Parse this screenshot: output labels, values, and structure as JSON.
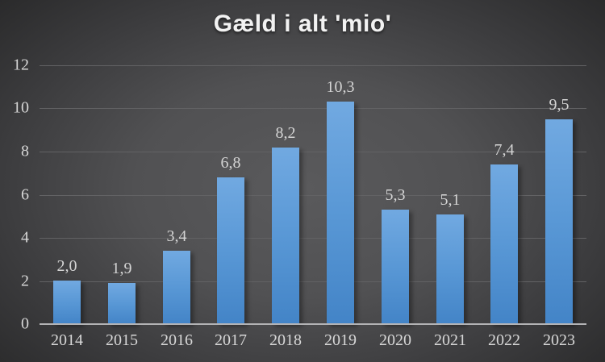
{
  "chart_data": {
    "type": "bar",
    "title": "Gæld i alt 'mio'",
    "categories": [
      "2014",
      "2015",
      "2016",
      "2017",
      "2018",
      "2019",
      "2020",
      "2021",
      "2022",
      "2023"
    ],
    "values": [
      2.0,
      1.9,
      3.4,
      6.8,
      8.2,
      10.3,
      5.3,
      5.1,
      7.4,
      9.5
    ],
    "value_labels": [
      "2,0",
      "1,9",
      "3,4",
      "6,8",
      "8,2",
      "10,3",
      "5,3",
      "5,1",
      "7,4",
      "9,5"
    ],
    "xlabel": "",
    "ylabel": "",
    "ylim": [
      0,
      12
    ],
    "yticks": [
      0,
      2,
      4,
      6,
      8,
      10,
      12
    ],
    "grid": true,
    "legend": false
  },
  "colors": {
    "bar_top": "#71a9e1",
    "bar_bottom": "#4384c7",
    "data_label": "#d4d4d4",
    "tick_label": "#d7d7d7",
    "title": "#f2f2f2",
    "gridline": "#626264",
    "axis_line": "#b3b3b5",
    "background_center": "#5a5a5c",
    "background_edge": "#2a2a2b"
  }
}
